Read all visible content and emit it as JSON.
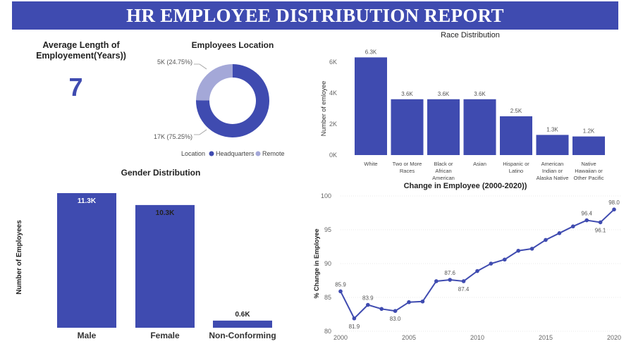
{
  "header": {
    "title": "HR EMPLOYEE DISTRIBUTION REPORT"
  },
  "kpi": {
    "label_line1": "Average Length of",
    "label_line2": "Employement(Years))",
    "value": "7"
  },
  "colors": {
    "primary": "#3f4bb0",
    "light": "#a4a8d8",
    "title_bg": "#3f4bb0"
  },
  "chart_data": [
    {
      "id": "location",
      "type": "pie",
      "title": "Employees Location",
      "legend_title": "Location",
      "categories": [
        "Headquarters",
        "Remote"
      ],
      "values": [
        75.25,
        24.75
      ],
      "data_labels": [
        "17K (75.25%)",
        "5K (24.75%)"
      ],
      "legend_position": "bottom"
    },
    {
      "id": "race",
      "type": "bar",
      "title": "Race Distribution",
      "ylabel": "Number of emloyee",
      "xlabel": "",
      "categories": [
        [
          "White"
        ],
        [
          "Two or More",
          "Races"
        ],
        [
          "Black or",
          "African",
          "American"
        ],
        [
          "Asian"
        ],
        [
          "Hispanic or",
          "Latino"
        ],
        [
          "American",
          "Indian or",
          "Alaska Native"
        ],
        [
          "Native",
          "Hawaiian or",
          "Other Pacific"
        ]
      ],
      "values": [
        6.3,
        3.6,
        3.6,
        3.6,
        2.5,
        1.3,
        1.2
      ],
      "data_labels": [
        "6.3K",
        "3.6K",
        "3.6K",
        "3.6K",
        "2.5K",
        "1.3K",
        "1.2K"
      ],
      "ylim": [
        0,
        6.8
      ],
      "yticks": [
        0,
        2,
        4,
        6
      ],
      "ytick_labels": [
        "0K",
        "2K",
        "4K",
        "6K"
      ]
    },
    {
      "id": "gender",
      "type": "bar",
      "title": "Gender Distribution",
      "ylabel": "Number of Employees",
      "xlabel": "",
      "categories": [
        "Male",
        "Female",
        "Non-Conforming"
      ],
      "values": [
        11.3,
        10.3,
        0.6
      ],
      "data_labels": [
        "11.3K",
        "10.3K",
        "0.6K"
      ],
      "ylim": [
        0,
        11.3
      ]
    },
    {
      "id": "change",
      "type": "line",
      "title": "Change in Employee (2000-2020))",
      "ylabel": "% Change in Employee",
      "xlabel": "",
      "x": [
        2000,
        2001,
        2002,
        2003,
        2004,
        2005,
        2006,
        2007,
        2008,
        2009,
        2010,
        2011,
        2012,
        2013,
        2014,
        2015,
        2016,
        2017,
        2018,
        2019,
        2020
      ],
      "values": [
        85.9,
        81.9,
        83.9,
        83.3,
        83.0,
        84.3,
        84.4,
        87.4,
        87.6,
        87.4,
        88.9,
        90.0,
        90.6,
        91.9,
        92.2,
        93.5,
        94.5,
        95.5,
        96.4,
        96.1,
        98.0
      ],
      "point_labels": [
        {
          "index": 0,
          "text": "85.9",
          "pos": "above"
        },
        {
          "index": 1,
          "text": "81.9",
          "pos": "below"
        },
        {
          "index": 2,
          "text": "83.9",
          "pos": "above"
        },
        {
          "index": 4,
          "text": "83.0",
          "pos": "below"
        },
        {
          "index": 8,
          "text": "87.6",
          "pos": "above"
        },
        {
          "index": 9,
          "text": "87.4",
          "pos": "below"
        },
        {
          "index": 18,
          "text": "96.4",
          "pos": "above"
        },
        {
          "index": 19,
          "text": "96.1",
          "pos": "below"
        },
        {
          "index": 20,
          "text": "98.0",
          "pos": "above"
        }
      ],
      "ylim": [
        80,
        100
      ],
      "yticks": [
        80,
        85,
        90,
        95,
        100
      ],
      "xticks": [
        2000,
        2005,
        2010,
        2015,
        2020
      ]
    }
  ]
}
